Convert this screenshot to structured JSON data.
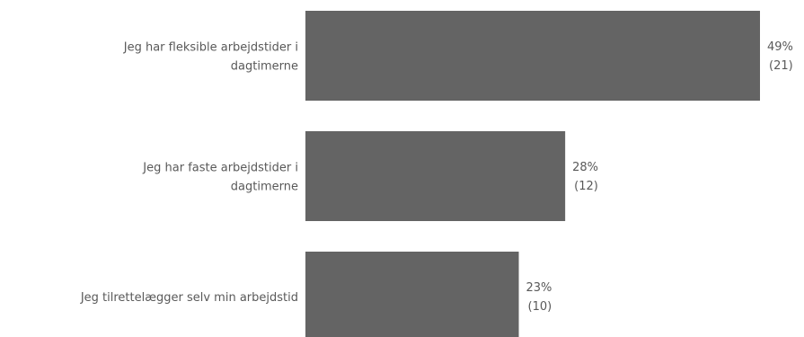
{
  "chart_data": {
    "type": "bar",
    "orientation": "horizontal",
    "categories": [
      [
        "Jeg har fleksible arbejdstider i",
        "dagtimerne"
      ],
      [
        "Jeg har faste arbejdstider i",
        "dagtimerne"
      ],
      [
        "Jeg tilrettelægger selv min arbejdstid"
      ]
    ],
    "values": [
      49,
      28,
      23
    ],
    "counts": [
      21,
      12,
      10
    ],
    "value_labels": [
      "49%",
      "28%",
      "23%"
    ],
    "count_labels": [
      "(21)",
      "(12)",
      "(10)"
    ],
    "xlim": [
      0,
      49
    ],
    "grid": false,
    "legend": "none",
    "bar_color": "#646464",
    "text_color": "#595959"
  }
}
